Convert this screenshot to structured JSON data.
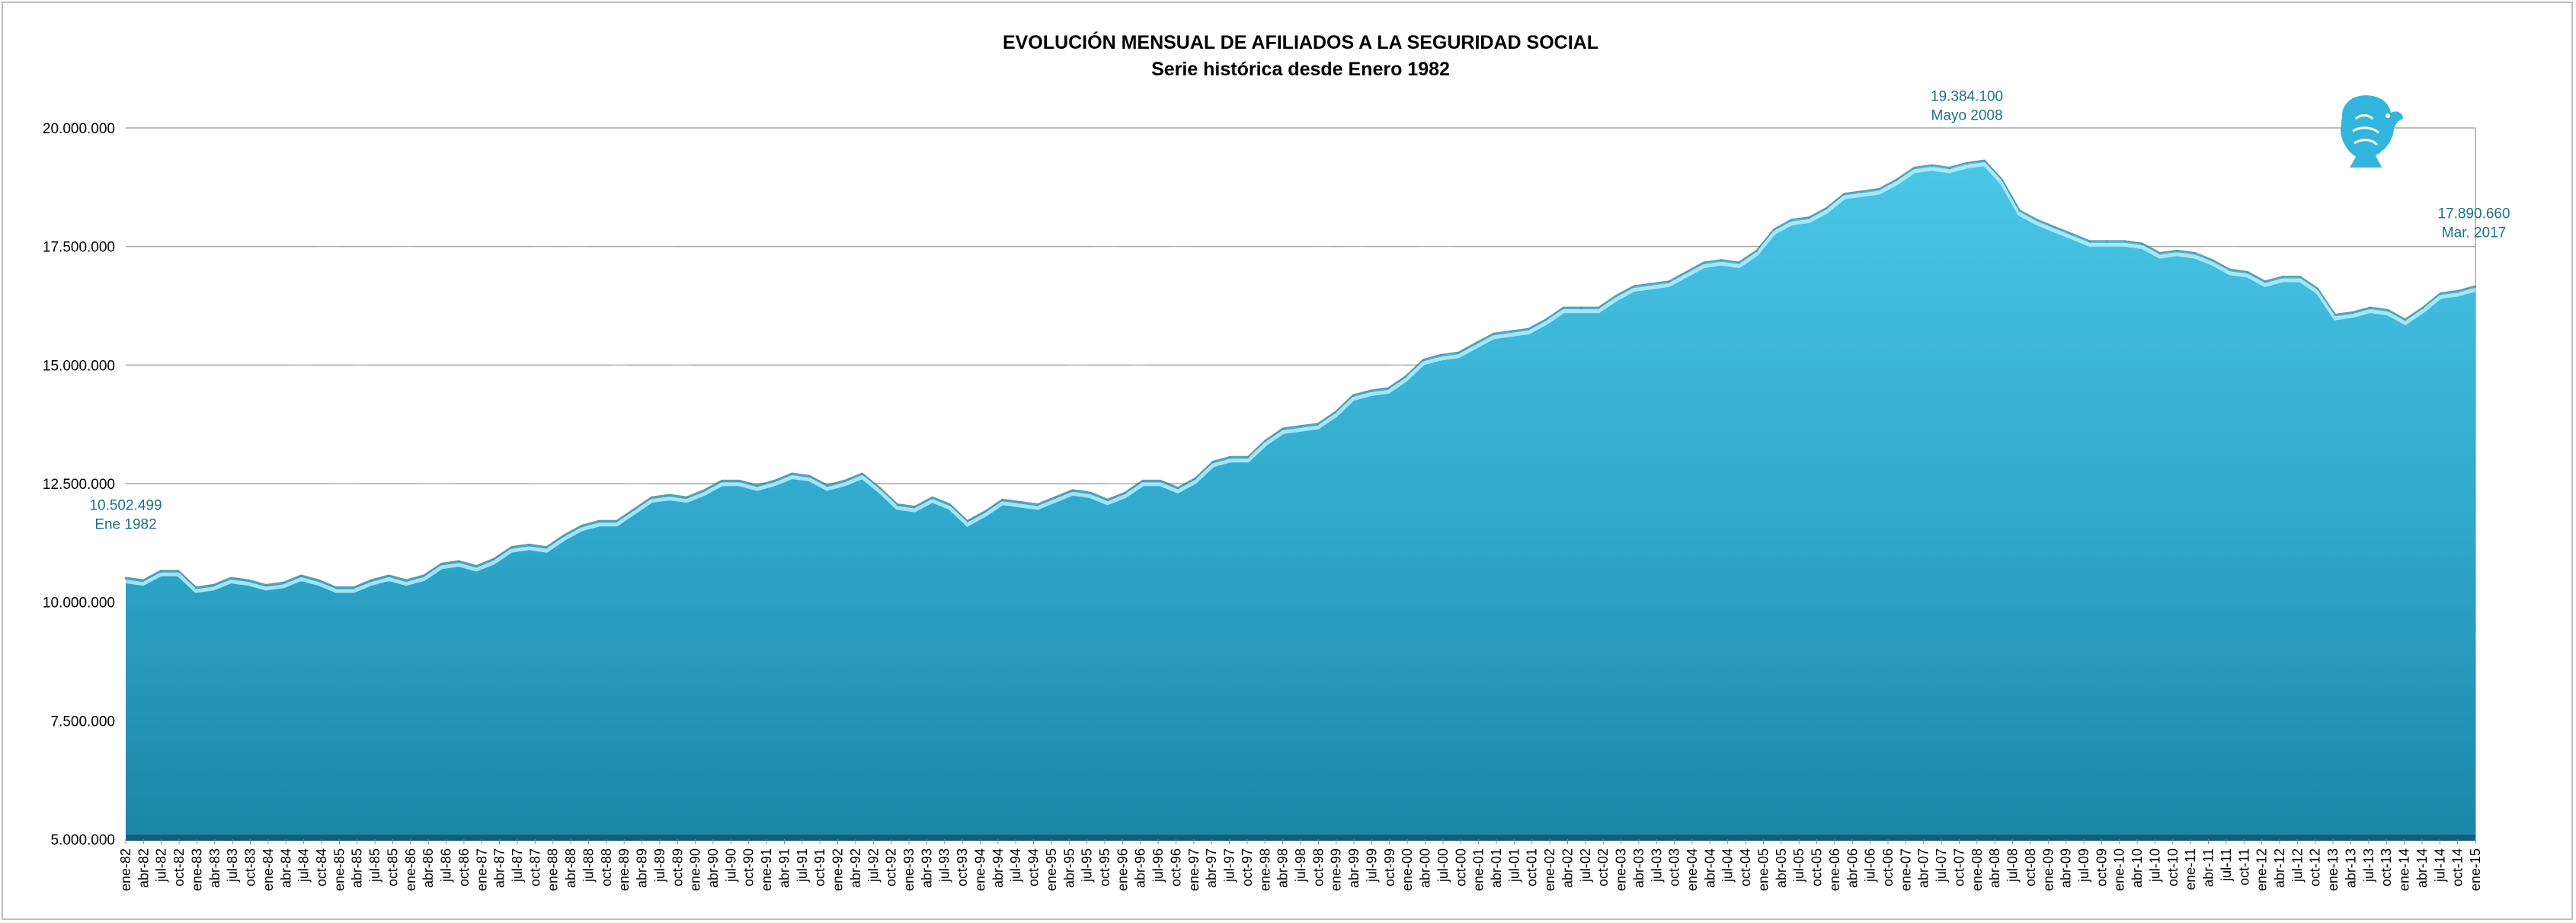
{
  "chart_data": {
    "type": "area",
    "title": "EVOLUCIÓN MENSUAL DE AFILIADOS A LA SEGURIDAD SOCIAL",
    "subtitle": "Serie histórica desde Enero 1982",
    "xlabel": "",
    "ylabel": "",
    "ylim": [
      5000000,
      20000000
    ],
    "yticks": [
      5000000,
      7500000,
      10000000,
      12500000,
      15000000,
      17500000,
      20000000
    ],
    "ytick_labels": [
      "5.000.000",
      "7.500.000",
      "10.000.000",
      "12.500.000",
      "15.000.000",
      "17.500.000",
      "20.000.000"
    ],
    "grid": true,
    "legend": "none",
    "colors": {
      "fill_top": "#45c2e6",
      "fill_bottom": "#1d8fb0",
      "grid": "#a6a6a6",
      "annotation": "#1f6f8b"
    },
    "x_tick_labels": [
      "ene-82",
      "abr-82",
      "jul-82",
      "oct-82",
      "ene-83",
      "abr-83",
      "jul-83",
      "oct-83",
      "ene-84",
      "abr-84",
      "jul-84",
      "oct-84",
      "ene-85",
      "abr-85",
      "jul-85",
      "oct-85",
      "ene-86",
      "abr-86",
      "jul-86",
      "oct-86",
      "ene-87",
      "abr-87",
      "jul-87",
      "oct-87",
      "ene-88",
      "abr-88",
      "jul-88",
      "oct-88",
      "ene-89",
      "abr-89",
      "jul-89",
      "oct-89",
      "ene-90",
      "abr-90",
      "jul-90",
      "oct-90",
      "ene-91",
      "abr-91",
      "jul-91",
      "oct-91",
      "ene-92",
      "abr-92",
      "jul-92",
      "oct-92",
      "ene-93",
      "abr-93",
      "jul-93",
      "oct-93",
      "ene-94",
      "abr-94",
      "jul-94",
      "oct-94",
      "ene-95",
      "abr-95",
      "jul-95",
      "oct-95",
      "ene-96",
      "abr-96",
      "jul-96",
      "oct-96",
      "ene-97",
      "abr-97",
      "jul-97",
      "oct-97",
      "ene-98",
      "abr-98",
      "jul-98",
      "oct-98",
      "ene-99",
      "abr-99",
      "jul-99",
      "oct-99",
      "ene-00",
      "abr-00",
      "jul-00",
      "oct-00",
      "ene-01",
      "abr-01",
      "jul-01",
      "oct-01",
      "ene-02",
      "abr-02",
      "jul-02",
      "oct-02",
      "ene-03",
      "abr-03",
      "jul-03",
      "oct-03",
      "ene-04",
      "abr-04",
      "jul-04",
      "oct-04",
      "ene-05",
      "abr-05",
      "jul-05",
      "oct-05",
      "ene-06",
      "abr-06",
      "jul-06",
      "oct-06",
      "ene-07",
      "abr-07",
      "jul-07",
      "oct-07",
      "ene-08",
      "abr-08",
      "jul-08",
      "oct-08",
      "ene-09",
      "abr-09",
      "jul-09",
      "oct-09",
      "ene-10",
      "abr-10",
      "jul-10",
      "oct-10",
      "ene-11",
      "abr-11",
      "jul-11",
      "oct-11",
      "ene-12",
      "abr-12",
      "jul-12",
      "oct-12",
      "ene-13",
      "abr-13",
      "jul-13",
      "oct-13",
      "ene-14",
      "abr-14",
      "jul-14",
      "oct-14"
    ],
    "x_last_label": "ene-15",
    "series": [
      {
        "values": [
          10500000,
          10450000,
          10650000,
          10650000,
          10300000,
          10350000,
          10500000,
          10450000,
          10350000,
          10400000,
          10550000,
          10450000,
          10300000,
          10300000,
          10450000,
          10550000,
          10450000,
          10550000,
          10800000,
          10850000,
          10750000,
          10900000,
          11150000,
          11200000,
          11150000,
          11400000,
          11600000,
          11700000,
          11700000,
          11950000,
          12200000,
          12250000,
          12200000,
          12350000,
          12550000,
          12550000,
          12450000,
          12550000,
          12700000,
          12650000,
          12450000,
          12550000,
          12700000,
          12400000,
          12050000,
          12000000,
          12200000,
          12050000,
          11700000,
          11900000,
          12150000,
          12100000,
          12050000,
          12200000,
          12350000,
          12300000,
          12150000,
          12300000,
          12550000,
          12550000,
          12400000,
          12600000,
          12950000,
          13050000,
          13050000,
          13400000,
          13650000,
          13700000,
          13750000,
          14000000,
          14350000,
          14450000,
          14500000,
          14750000,
          15100000,
          15200000,
          15250000,
          15450000,
          15650000,
          15700000,
          15750000,
          15950000,
          16200000,
          16200000,
          16200000,
          16450000,
          16650000,
          16700000,
          16750000,
          16950000,
          17150000,
          17200000,
          17150000,
          17400000,
          17850000,
          18050000,
          18100000,
          18300000,
          18600000,
          18650000,
          18700000,
          18900000,
          19150000,
          19200000,
          19150000,
          19250000,
          19300000,
          18900000,
          18250000,
          18050000,
          17900000,
          17750000,
          17600000,
          17600000,
          17600000,
          17550000,
          17350000,
          17400000,
          17350000,
          17200000,
          17000000,
          16950000,
          16750000,
          16850000,
          16850000,
          16600000,
          16050000,
          16100000,
          16200000,
          16150000,
          15950000,
          16200000,
          16500000,
          16550000,
          16650000
        ]
      }
    ],
    "annotations": [
      {
        "value": "10.502.499",
        "label": "Ene 1982"
      },
      {
        "value": "19.384.100",
        "label": "Mayo 2008"
      },
      {
        "value": "17.890.660",
        "label": "Mar. 2017"
      }
    ],
    "logo": "imss-eagle-icon"
  }
}
